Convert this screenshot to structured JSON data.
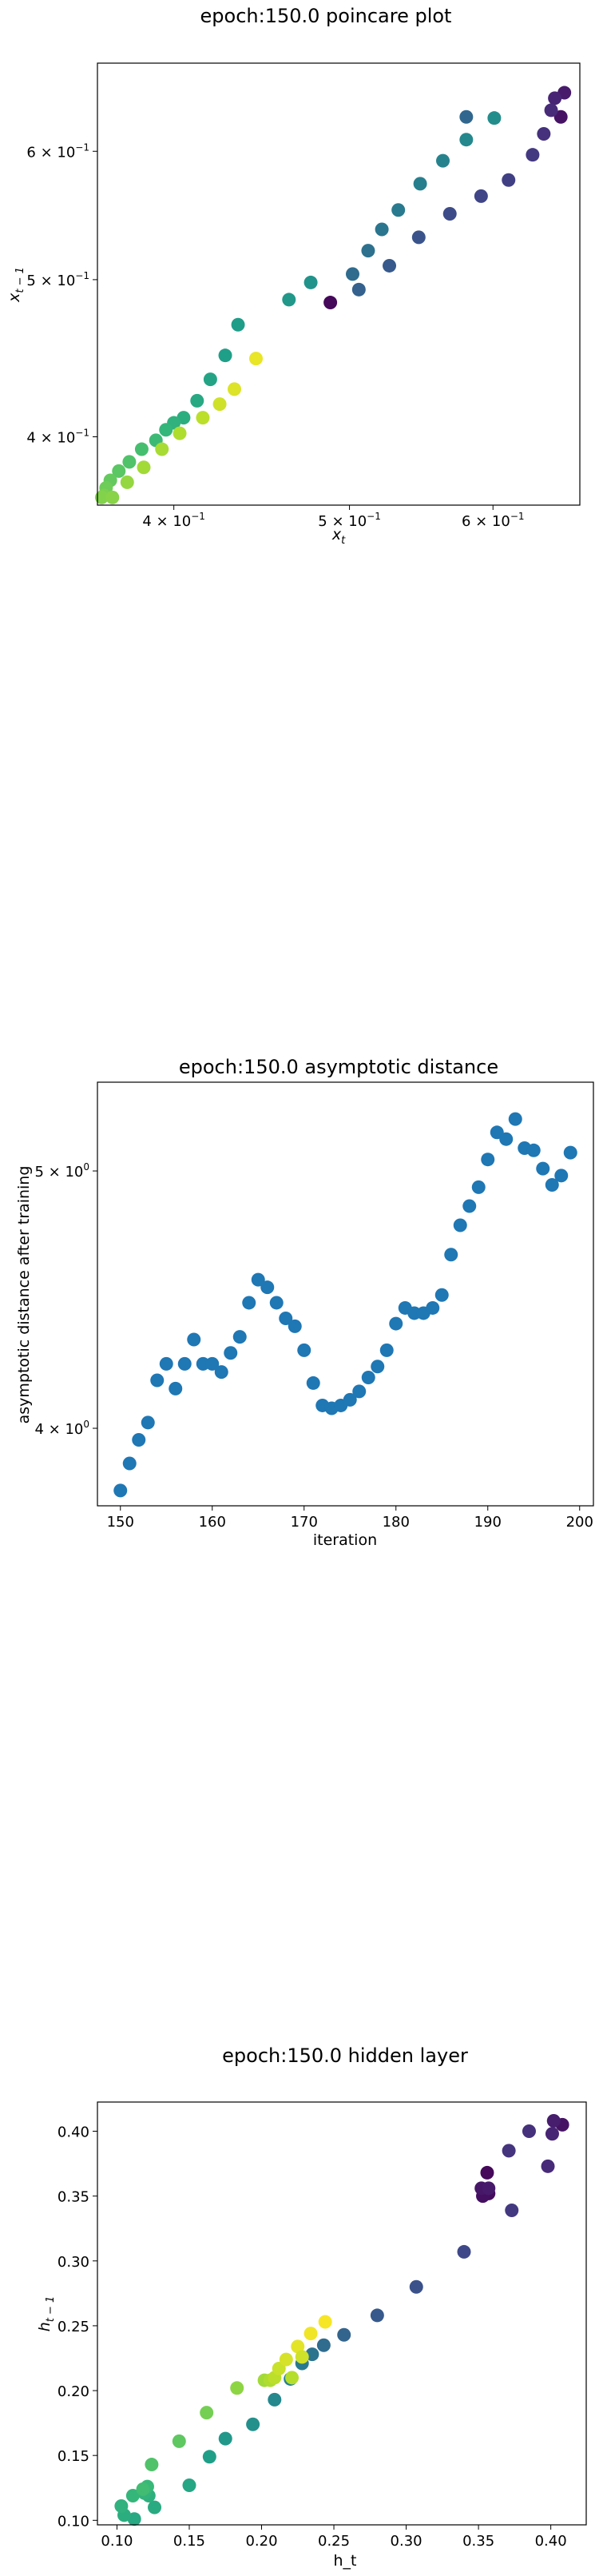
{
  "colors": {
    "viridis_start": "#440154",
    "viridis_end": "#fde725",
    "scatter_default": "#1f77b4"
  },
  "chart_data": [
    {
      "type": "scatter",
      "title": "epoch:150.0 poincare plot",
      "xlabel": "x_t",
      "ylabel": "x_{t-1}",
      "xscale": "log",
      "yscale": "log",
      "xlim": [
        0.363,
        0.67
      ],
      "ylim": [
        0.363,
        0.68
      ],
      "xticks": [
        {
          "v": 0.4,
          "base": "4 × 10",
          "exp": "−1"
        },
        {
          "v": 0.5,
          "base": "5 × 10",
          "exp": "−1"
        },
        {
          "v": 0.6,
          "base": "6 × 10",
          "exp": "−1"
        }
      ],
      "yticks": [
        {
          "v": 0.4,
          "base": "4 × 10",
          "exp": "−1"
        },
        {
          "v": 0.5,
          "base": "5 × 10",
          "exp": "−1"
        },
        {
          "v": 0.6,
          "base": "6 × 10",
          "exp": "−1"
        }
      ],
      "colormap": "viridis",
      "points": [
        [
          0.654,
          0.63,
          0.05
        ],
        [
          0.657,
          0.652,
          0.07
        ],
        [
          0.649,
          0.647,
          0.1
        ],
        [
          0.646,
          0.636,
          0.12
        ],
        [
          0.64,
          0.615,
          0.14
        ],
        [
          0.631,
          0.597,
          0.17
        ],
        [
          0.612,
          0.576,
          0.19
        ],
        [
          0.591,
          0.563,
          0.21
        ],
        [
          0.568,
          0.549,
          0.23
        ],
        [
          0.546,
          0.531,
          0.26
        ],
        [
          0.526,
          0.51,
          0.28
        ],
        [
          0.506,
          0.493,
          0.31
        ],
        [
          0.488,
          0.484,
          0.02
        ],
        [
          0.502,
          0.504,
          0.35
        ],
        [
          0.512,
          0.521,
          0.37
        ],
        [
          0.521,
          0.537,
          0.39
        ],
        [
          0.532,
          0.552,
          0.41
        ],
        [
          0.547,
          0.573,
          0.43
        ],
        [
          0.563,
          0.592,
          0.45
        ],
        [
          0.58,
          0.61,
          0.47
        ],
        [
          0.601,
          0.629,
          0.49
        ],
        [
          0.58,
          0.63,
          0.33
        ],
        [
          0.476,
          0.498,
          0.51
        ],
        [
          0.463,
          0.486,
          0.53
        ],
        [
          0.434,
          0.469,
          0.55
        ],
        [
          0.427,
          0.449,
          0.56
        ],
        [
          0.419,
          0.434,
          0.58
        ],
        [
          0.412,
          0.421,
          0.6
        ],
        [
          0.405,
          0.411,
          0.62
        ],
        [
          0.4,
          0.408,
          0.64
        ],
        [
          0.396,
          0.404,
          0.66
        ],
        [
          0.391,
          0.398,
          0.68
        ],
        [
          0.384,
          0.393,
          0.7
        ],
        [
          0.378,
          0.386,
          0.72
        ],
        [
          0.373,
          0.381,
          0.74
        ],
        [
          0.369,
          0.376,
          0.76
        ],
        [
          0.367,
          0.372,
          0.78
        ],
        [
          0.366,
          0.368,
          0.8
        ],
        [
          0.365,
          0.367,
          0.81
        ],
        [
          0.37,
          0.367,
          0.82
        ],
        [
          0.377,
          0.375,
          0.84
        ],
        [
          0.385,
          0.383,
          0.86
        ],
        [
          0.394,
          0.393,
          0.87
        ],
        [
          0.403,
          0.402,
          0.88
        ],
        [
          0.415,
          0.411,
          0.9
        ],
        [
          0.424,
          0.419,
          0.93
        ],
        [
          0.432,
          0.428,
          0.95
        ],
        [
          0.444,
          0.447,
          0.97
        ]
      ]
    },
    {
      "type": "scatter",
      "title": "epoch:150.0 asymptotic distance",
      "xlabel": "iteration",
      "ylabel": "asymptotic distance after training",
      "yscale": "log",
      "xlim": [
        147.5,
        201.5
      ],
      "ylim": [
        3.74,
        5.4
      ],
      "xticks": [
        {
          "v": 150,
          "label": "150"
        },
        {
          "v": 160,
          "label": "160"
        },
        {
          "v": 170,
          "label": "170"
        },
        {
          "v": 180,
          "label": "180"
        },
        {
          "v": 190,
          "label": "190"
        },
        {
          "v": 200,
          "label": "200"
        }
      ],
      "yticks": [
        {
          "v": 4,
          "base": "4 × 10",
          "exp": "0"
        },
        {
          "v": 5,
          "base": "5 × 10",
          "exp": "0"
        }
      ],
      "x": [
        150,
        151,
        152,
        153,
        154,
        155,
        156,
        157,
        158,
        159,
        160,
        161,
        162,
        163,
        164,
        165,
        166,
        167,
        168,
        169,
        170,
        171,
        172,
        173,
        174,
        175,
        176,
        177,
        178,
        179,
        180,
        181,
        182,
        183,
        184,
        185,
        186,
        187,
        188,
        189,
        190,
        191,
        192,
        193,
        194,
        195,
        196,
        197,
        198,
        199
      ],
      "y": [
        3.79,
        3.88,
        3.96,
        4.02,
        4.17,
        4.23,
        4.14,
        4.23,
        4.32,
        4.23,
        4.23,
        4.2,
        4.27,
        4.33,
        4.46,
        4.55,
        4.52,
        4.46,
        4.4,
        4.37,
        4.28,
        4.16,
        4.08,
        4.07,
        4.08,
        4.1,
        4.13,
        4.18,
        4.22,
        4.28,
        4.38,
        4.44,
        4.42,
        4.42,
        4.44,
        4.49,
        4.65,
        4.77,
        4.85,
        4.93,
        5.05,
        5.17,
        5.14,
        5.23,
        5.1,
        5.09,
        5.01,
        4.94,
        4.98,
        5.08
      ]
    },
    {
      "type": "scatter",
      "title": "epoch:150.0 hidden layer",
      "xlabel": "h_t",
      "ylabel": "h_{t-1}",
      "xlim": [
        0.0865,
        0.4245
      ],
      "ylim": [
        0.0965,
        0.4225
      ],
      "xticks": [
        {
          "v": 0.1,
          "label": "0.10"
        },
        {
          "v": 0.15,
          "label": "0.15"
        },
        {
          "v": 0.2,
          "label": "0.20"
        },
        {
          "v": 0.25,
          "label": "0.25"
        },
        {
          "v": 0.3,
          "label": "0.30"
        },
        {
          "v": 0.35,
          "label": "0.35"
        },
        {
          "v": 0.4,
          "label": "0.40"
        }
      ],
      "yticks": [
        {
          "v": 0.1,
          "label": "0.10"
        },
        {
          "v": 0.15,
          "label": "0.15"
        },
        {
          "v": 0.2,
          "label": "0.20"
        },
        {
          "v": 0.25,
          "label": "0.25"
        },
        {
          "v": 0.3,
          "label": "0.30"
        },
        {
          "v": 0.35,
          "label": "0.35"
        },
        {
          "v": 0.4,
          "label": "0.40"
        }
      ],
      "colormap": "viridis",
      "points": [
        [
          0.408,
          0.405,
          0.05
        ],
        [
          0.402,
          0.408,
          0.08
        ],
        [
          0.401,
          0.398,
          0.1
        ],
        [
          0.398,
          0.373,
          0.12
        ],
        [
          0.385,
          0.4,
          0.14
        ],
        [
          0.373,
          0.339,
          0.17
        ],
        [
          0.371,
          0.385,
          0.15
        ],
        [
          0.356,
          0.368,
          0.02
        ],
        [
          0.357,
          0.352,
          0.03
        ],
        [
          0.353,
          0.35,
          0.04
        ],
        [
          0.352,
          0.356,
          0.06
        ],
        [
          0.357,
          0.356,
          0.07
        ],
        [
          0.34,
          0.307,
          0.22
        ],
        [
          0.307,
          0.28,
          0.25
        ],
        [
          0.28,
          0.258,
          0.28
        ],
        [
          0.257,
          0.243,
          0.32
        ],
        [
          0.243,
          0.235,
          0.35
        ],
        [
          0.235,
          0.228,
          0.38
        ],
        [
          0.228,
          0.221,
          0.41
        ],
        [
          0.22,
          0.209,
          0.44
        ],
        [
          0.209,
          0.193,
          0.47
        ],
        [
          0.194,
          0.174,
          0.5
        ],
        [
          0.175,
          0.163,
          0.53
        ],
        [
          0.164,
          0.149,
          0.56
        ],
        [
          0.15,
          0.127,
          0.59
        ],
        [
          0.126,
          0.11,
          0.61
        ],
        [
          0.122,
          0.119,
          0.63
        ],
        [
          0.119,
          0.121,
          0.65
        ],
        [
          0.121,
          0.126,
          0.67
        ],
        [
          0.112,
          0.101,
          0.6
        ],
        [
          0.105,
          0.104,
          0.62
        ],
        [
          0.103,
          0.111,
          0.64
        ],
        [
          0.111,
          0.119,
          0.66
        ],
        [
          0.118,
          0.124,
          0.69
        ],
        [
          0.124,
          0.143,
          0.72
        ],
        [
          0.143,
          0.161,
          0.75
        ],
        [
          0.162,
          0.183,
          0.79
        ],
        [
          0.183,
          0.202,
          0.83
        ],
        [
          0.202,
          0.208,
          0.86
        ],
        [
          0.206,
          0.208,
          0.88
        ],
        [
          0.209,
          0.21,
          0.9
        ],
        [
          0.212,
          0.217,
          0.92
        ],
        [
          0.217,
          0.224,
          0.94
        ],
        [
          0.225,
          0.234,
          0.96
        ],
        [
          0.234,
          0.244,
          0.98
        ],
        [
          0.244,
          0.253,
          0.99
        ],
        [
          0.221,
          0.21,
          0.89
        ],
        [
          0.228,
          0.226,
          0.93
        ]
      ]
    }
  ]
}
